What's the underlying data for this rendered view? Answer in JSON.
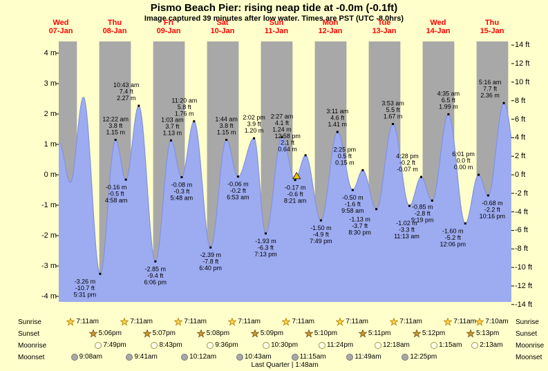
{
  "title": "Pismo Beach Pier: rising  neap tide at -0.0m (-0.1ft)",
  "subtitle": "Image captured 39 minutes after low water. Times are PST (UTC -8.0hrs)",
  "footer": "Last Quarter | 1:48am",
  "colors": {
    "page_bg": "#ffffcc",
    "night_band": "#a8a8a8",
    "tide_fill": "#9dabf0",
    "tide_stroke": "#8092e4",
    "day_label": "#ff0000",
    "annotation_text": "#000000",
    "marker_fill": "#f2c200",
    "sunrise_star": "#ffd24d",
    "sunrise_star_stroke": "#b8860b",
    "sunset_star": "#cc9933",
    "sunset_star_stroke": "#7a5c1e",
    "moonrise_circle": "#ffffe8",
    "moonrise_circle_stroke": "#99994d",
    "moonset_circle": "#a8a8a8",
    "moonset_circle_stroke": "#777777"
  },
  "days": [
    {
      "weekday": "Wed",
      "date": "07-Jan"
    },
    {
      "weekday": "Thu",
      "date": "08-Jan"
    },
    {
      "weekday": "Fri",
      "date": "09-Jan"
    },
    {
      "weekday": "Sat",
      "date": "10-Jan"
    },
    {
      "weekday": "Sun",
      "date": "11-Jan"
    },
    {
      "weekday": "Mon",
      "date": "12-Jan"
    },
    {
      "weekday": "Tue",
      "date": "13-Jan"
    },
    {
      "weekday": "Wed",
      "date": "14-Jan"
    },
    {
      "weekday": "Thu",
      "date": "15-Jan"
    }
  ],
  "axis_left": [
    {
      "label": "4 m",
      "value_m": 4
    },
    {
      "label": "3 m",
      "value_m": 3
    },
    {
      "label": "2 m",
      "value_m": 2
    },
    {
      "label": "1 m",
      "value_m": 1
    },
    {
      "label": "0 m",
      "value_m": 0
    },
    {
      "label": "-1 m",
      "value_m": -1
    },
    {
      "label": "-2 m",
      "value_m": -2
    },
    {
      "label": "-3 m",
      "value_m": -3
    },
    {
      "label": "-4 m",
      "value_m": -4
    }
  ],
  "axis_right": [
    {
      "label": "14 ft",
      "value_ft": 14
    },
    {
      "label": "12 ft",
      "value_ft": 12
    },
    {
      "label": "10 ft",
      "value_ft": 10
    },
    {
      "label": "8 ft",
      "value_ft": 8
    },
    {
      "label": "6 ft",
      "value_ft": 6
    },
    {
      "label": "4 ft",
      "value_ft": 4
    },
    {
      "label": "2 ft",
      "value_ft": 2
    },
    {
      "label": "0 ft",
      "value_ft": 0
    },
    {
      "label": "-2 ft",
      "value_ft": -2
    },
    {
      "label": "-4 ft",
      "value_ft": -4
    },
    {
      "label": "-6 ft",
      "value_ft": -6
    },
    {
      "label": "-8 ft",
      "value_ft": -8
    },
    {
      "label": "-10 ft",
      "value_ft": -10
    },
    {
      "label": "-12 ft",
      "value_ft": -12
    },
    {
      "label": "-14 ft",
      "value_ft": -14
    }
  ],
  "chart_data": {
    "type": "area",
    "x_span_days": [
      "07-Jan",
      "15-Jan"
    ],
    "ylim_m": [
      -4,
      4
    ],
    "night_bands": {
      "from": "sunset",
      "to": "sunrise",
      "color": "#a8a8a8"
    },
    "tide_events": [
      {
        "day": 0,
        "time": "5:31 pm",
        "height_m": -3.26,
        "height_ft": -10.7,
        "kind": "low"
      },
      {
        "day": 1,
        "time": "12:22 am",
        "height_m": 1.15,
        "height_ft": 3.8,
        "kind": "high"
      },
      {
        "day": 1,
        "time": "4:58 am",
        "height_m": -0.16,
        "height_ft": -0.5,
        "kind": "low"
      },
      {
        "day": 1,
        "time": "10:43 am",
        "height_m": 2.27,
        "height_ft": 7.4,
        "kind": "high"
      },
      {
        "day": 1,
        "time": "6:06 pm",
        "height_m": -2.85,
        "height_ft": -9.4,
        "kind": "low"
      },
      {
        "day": 2,
        "time": "1:03 am",
        "height_m": 1.13,
        "height_ft": 3.7,
        "kind": "high"
      },
      {
        "day": 2,
        "time": "5:48 am",
        "height_m": -0.08,
        "height_ft": -0.3,
        "kind": "low"
      },
      {
        "day": 2,
        "time": "11:20 am",
        "height_m": 1.76,
        "height_ft": 5.8,
        "kind": "high"
      },
      {
        "day": 2,
        "time": "6:40 pm",
        "height_m": -2.39,
        "height_ft": -7.8,
        "kind": "low"
      },
      {
        "day": 3,
        "time": "1:44 am",
        "height_m": 1.15,
        "height_ft": 3.8,
        "kind": "high"
      },
      {
        "day": 3,
        "time": "6:53 am",
        "height_m": -0.06,
        "height_ft": -0.2,
        "kind": "low"
      },
      {
        "day": 3,
        "time": "2:02 pm",
        "height_m": 1.2,
        "height_ft": 3.9,
        "kind": "high"
      },
      {
        "day": 3,
        "time": "7:13 pm",
        "height_m": -1.93,
        "height_ft": -6.3,
        "kind": "low"
      },
      {
        "day": 4,
        "time": "2:27 am",
        "height_m": 1.24,
        "height_ft": 4.1,
        "kind": "high"
      },
      {
        "day": 4,
        "time": "8:21 am",
        "height_m": -0.17,
        "height_ft": -0.6,
        "kind": "low"
      },
      {
        "day": 4,
        "time": "12:58 pm",
        "height_m": 0.64,
        "height_ft": 2.1,
        "kind": "high"
      },
      {
        "day": 4,
        "time": "7:49 pm",
        "height_m": -1.5,
        "height_ft": -4.9,
        "kind": "low"
      },
      {
        "day": 5,
        "time": "3:11 am",
        "height_m": 1.41,
        "height_ft": 4.6,
        "kind": "high"
      },
      {
        "day": 5,
        "time": "9:58 am",
        "height_m": -0.5,
        "height_ft": -1.6,
        "kind": "low"
      },
      {
        "day": 5,
        "time": "2:25 pm",
        "height_m": 0.15,
        "height_ft": 0.5,
        "kind": "high"
      },
      {
        "day": 5,
        "time": "8:30 pm",
        "height_m": -1.13,
        "height_ft": -3.7,
        "kind": "low"
      },
      {
        "day": 6,
        "time": "3:53 am",
        "height_m": 1.67,
        "height_ft": 5.5,
        "kind": "high"
      },
      {
        "day": 6,
        "time": "11:13 am",
        "height_m": -1.02,
        "height_ft": -3.3,
        "kind": "low"
      },
      {
        "day": 6,
        "time": "4:28 pm",
        "height_m": -0.07,
        "height_ft": -0.2,
        "kind": "high"
      },
      {
        "day": 6,
        "time": "9:19 pm",
        "height_m": -0.85,
        "height_ft": -2.8,
        "kind": "low"
      },
      {
        "day": 7,
        "time": "4:35 am",
        "height_m": 1.99,
        "height_ft": 6.5,
        "kind": "high"
      },
      {
        "day": 7,
        "time": "12:06 pm",
        "height_m": -1.6,
        "height_ft": -5.2,
        "kind": "low"
      },
      {
        "day": 7,
        "time": "6:01 pm",
        "height_m": 0.0,
        "height_ft": 0.0,
        "kind": "high"
      },
      {
        "day": 7,
        "time": "10:16 pm",
        "height_m": -0.68,
        "height_ft": -2.2,
        "kind": "low"
      },
      {
        "day": 8,
        "time": "5:16 am",
        "height_m": 2.36,
        "height_ft": 7.7,
        "kind": "high"
      }
    ],
    "curve_shape_estimates": [
      {
        "day": -1,
        "time": "5:30 pm",
        "height_m": -0.5
      },
      {
        "day": -1,
        "time": "11:18 pm",
        "height_m": 1.05
      },
      {
        "day": 0,
        "time": "4:15 am",
        "height_m": -0.25
      },
      {
        "day": 0,
        "time": "10:05 am",
        "height_m": 2.55
      },
      {
        "day": 8,
        "time": "12:30 pm",
        "height_m": -0.3
      }
    ],
    "current_marker": {
      "day": 4,
      "time": "9:00 am",
      "height_m": -0.0,
      "note": "39 minutes after low water"
    }
  },
  "astro": {
    "rows": [
      {
        "label": "Sunrise",
        "icon": "sunrise-star",
        "entries": [
          {
            "day": 0,
            "time": "7:11am"
          },
          {
            "day": 1,
            "time": "7:11am"
          },
          {
            "day": 2,
            "time": "7:11am"
          },
          {
            "day": 3,
            "time": "7:11am"
          },
          {
            "day": 4,
            "time": "7:11am"
          },
          {
            "day": 5,
            "time": "7:11am"
          },
          {
            "day": 6,
            "time": "7:11am"
          },
          {
            "day": 7,
            "time": "7:11am"
          },
          {
            "day": 8,
            "time": "7:10am"
          }
        ]
      },
      {
        "label": "Sunset",
        "icon": "sunset-star",
        "entries": [
          {
            "day": 0,
            "time": "5:06pm"
          },
          {
            "day": 1,
            "time": "5:07pm"
          },
          {
            "day": 2,
            "time": "5:08pm"
          },
          {
            "day": 3,
            "time": "5:09pm"
          },
          {
            "day": 4,
            "time": "5:10pm"
          },
          {
            "day": 5,
            "time": "5:11pm"
          },
          {
            "day": 6,
            "time": "5:12pm"
          },
          {
            "day": 7,
            "time": "5:13pm"
          }
        ]
      },
      {
        "label": "Moonrise",
        "icon": "moonrise-circle",
        "entries": [
          {
            "day": 0,
            "time": "7:49pm"
          },
          {
            "day": 1,
            "time": "8:43pm"
          },
          {
            "day": 2,
            "time": "9:36pm"
          },
          {
            "day": 3,
            "time": "10:30pm"
          },
          {
            "day": 4,
            "time": "11:24pm"
          },
          {
            "day": 6,
            "time": "12:18am"
          },
          {
            "day": 7,
            "time": "1:15am"
          },
          {
            "day": 8,
            "time": "2:13am"
          }
        ]
      },
      {
        "label": "Moonset",
        "icon": "moonset-circle",
        "entries": [
          {
            "day": 0,
            "time": "9:08am"
          },
          {
            "day": 1,
            "time": "9:41am"
          },
          {
            "day": 2,
            "time": "10:12am"
          },
          {
            "day": 3,
            "time": "10:43am"
          },
          {
            "day": 4,
            "time": "11:15am"
          },
          {
            "day": 5,
            "time": "11:49am"
          },
          {
            "day": 6,
            "time": "12:25pm"
          }
        ]
      }
    ]
  }
}
